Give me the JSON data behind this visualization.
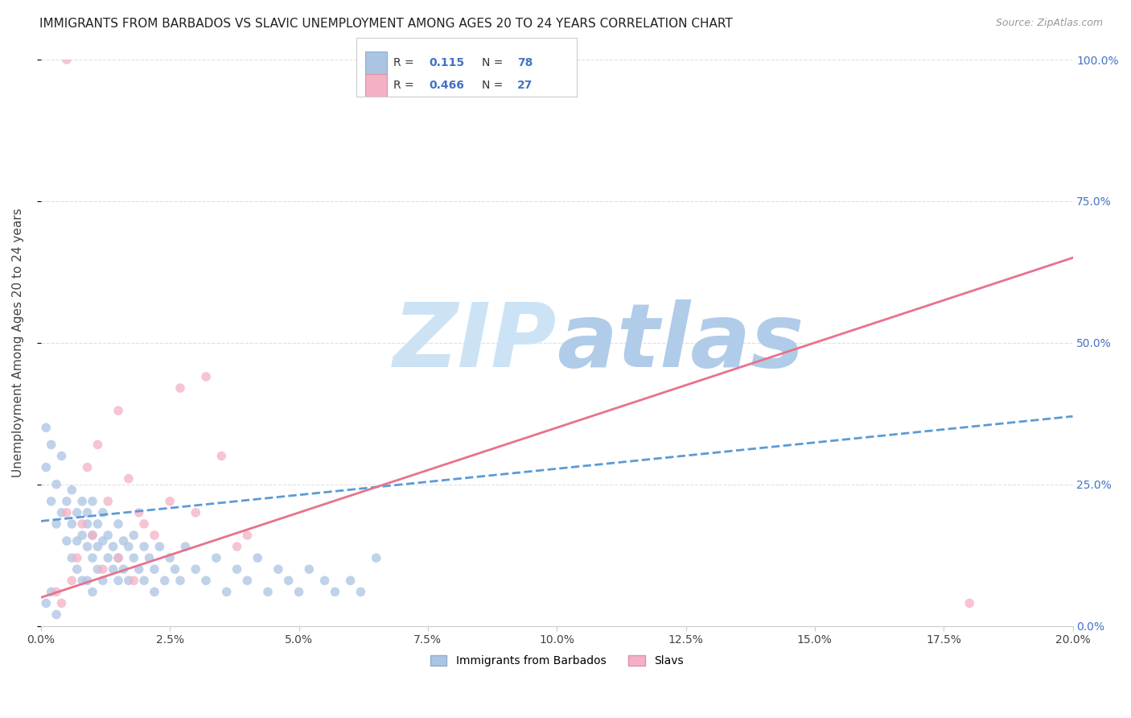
{
  "title": "IMMIGRANTS FROM BARBADOS VS SLAVIC UNEMPLOYMENT AMONG AGES 20 TO 24 YEARS CORRELATION CHART",
  "source": "Source: ZipAtlas.com",
  "ylabel": "Unemployment Among Ages 20 to 24 years",
  "xmin": 0.0,
  "xmax": 0.2,
  "ymin": 0.0,
  "ymax": 1.0,
  "xtick_vals": [
    0.0,
    0.025,
    0.05,
    0.075,
    0.1,
    0.125,
    0.15,
    0.175,
    0.2
  ],
  "ytick_vals": [
    0.0,
    0.25,
    0.5,
    0.75,
    1.0
  ],
  "blue_scatter_x": [
    0.001,
    0.001,
    0.002,
    0.002,
    0.003,
    0.003,
    0.004,
    0.004,
    0.005,
    0.005,
    0.006,
    0.006,
    0.006,
    0.007,
    0.007,
    0.007,
    0.008,
    0.008,
    0.008,
    0.009,
    0.009,
    0.009,
    0.009,
    0.01,
    0.01,
    0.01,
    0.01,
    0.011,
    0.011,
    0.011,
    0.012,
    0.012,
    0.012,
    0.013,
    0.013,
    0.014,
    0.014,
    0.015,
    0.015,
    0.015,
    0.016,
    0.016,
    0.017,
    0.017,
    0.018,
    0.018,
    0.019,
    0.02,
    0.02,
    0.021,
    0.022,
    0.022,
    0.023,
    0.024,
    0.025,
    0.026,
    0.027,
    0.028,
    0.03,
    0.032,
    0.034,
    0.036,
    0.038,
    0.04,
    0.042,
    0.044,
    0.046,
    0.048,
    0.05,
    0.052,
    0.055,
    0.057,
    0.06,
    0.062,
    0.001,
    0.002,
    0.003,
    0.065
  ],
  "blue_scatter_y": [
    0.35,
    0.28,
    0.32,
    0.22,
    0.25,
    0.18,
    0.3,
    0.2,
    0.15,
    0.22,
    0.18,
    0.24,
    0.12,
    0.2,
    0.15,
    0.1,
    0.22,
    0.16,
    0.08,
    0.18,
    0.14,
    0.2,
    0.08,
    0.16,
    0.22,
    0.12,
    0.06,
    0.18,
    0.14,
    0.1,
    0.15,
    0.2,
    0.08,
    0.16,
    0.12,
    0.14,
    0.1,
    0.18,
    0.12,
    0.08,
    0.15,
    0.1,
    0.14,
    0.08,
    0.12,
    0.16,
    0.1,
    0.14,
    0.08,
    0.12,
    0.1,
    0.06,
    0.14,
    0.08,
    0.12,
    0.1,
    0.08,
    0.14,
    0.1,
    0.08,
    0.12,
    0.06,
    0.1,
    0.08,
    0.12,
    0.06,
    0.1,
    0.08,
    0.06,
    0.1,
    0.08,
    0.06,
    0.08,
    0.06,
    0.04,
    0.06,
    0.02,
    0.12
  ],
  "pink_scatter_x": [
    0.003,
    0.004,
    0.005,
    0.006,
    0.007,
    0.008,
    0.009,
    0.01,
    0.011,
    0.012,
    0.013,
    0.015,
    0.015,
    0.017,
    0.018,
    0.019,
    0.02,
    0.022,
    0.025,
    0.027,
    0.03,
    0.032,
    0.035,
    0.038,
    0.04,
    0.005,
    0.18
  ],
  "pink_scatter_y": [
    0.06,
    0.04,
    0.2,
    0.08,
    0.12,
    0.18,
    0.28,
    0.16,
    0.32,
    0.1,
    0.22,
    0.38,
    0.12,
    0.26,
    0.08,
    0.2,
    0.18,
    0.16,
    0.22,
    0.42,
    0.2,
    0.44,
    0.3,
    0.14,
    0.16,
    1.0,
    0.04
  ],
  "blue_line_x0": 0.0,
  "blue_line_x1": 0.2,
  "blue_line_y0": 0.185,
  "blue_line_y1": 0.37,
  "pink_line_x0": 0.0,
  "pink_line_x1": 0.2,
  "pink_line_y0": 0.05,
  "pink_line_y1": 0.65,
  "scatter_size": 70,
  "blue_scatter_color": "#aac4e2",
  "blue_scatter_edge": "#aac4e2",
  "pink_scatter_color": "#f4b0c4",
  "pink_scatter_edge": "#f4b0c4",
  "blue_line_color": "#5b9bd5",
  "pink_line_color": "#e8728c",
  "watermark_zip_color": "#c8dff0",
  "watermark_atlas_color": "#b8d0e8",
  "background_color": "#ffffff",
  "grid_color": "#e0e0e0",
  "title_fontsize": 11,
  "axis_label_fontsize": 11,
  "tick_fontsize": 10,
  "right_tick_color": "#4472c4",
  "bottom_legend_labels": [
    "Immigrants from Barbados",
    "Slavs"
  ],
  "legend_R1": "0.115",
  "legend_N1": "78",
  "legend_R2": "0.466",
  "legend_N2": "27"
}
